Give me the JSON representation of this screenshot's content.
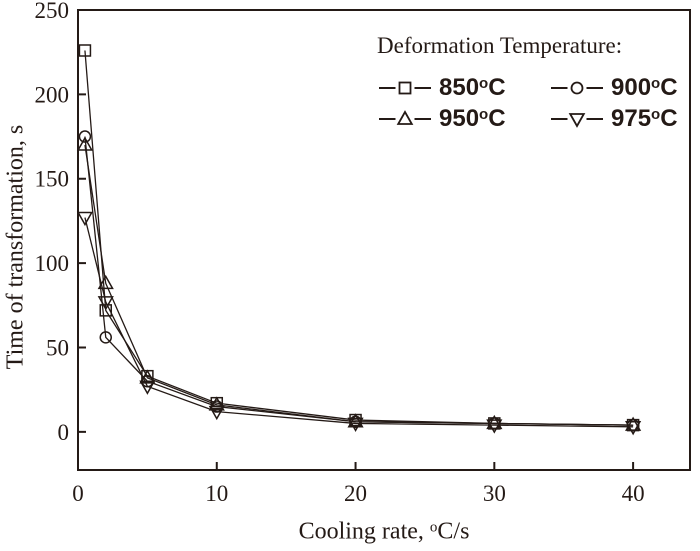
{
  "figure": {
    "background": "#ffffff",
    "ink_color": "#241a16"
  },
  "axes": {
    "x": {
      "label": "Cooling rate, °C/s",
      "ticks": [
        0,
        10,
        20,
        30,
        40
      ]
    },
    "y": {
      "label": "Time of transformation, s",
      "ticks": [
        0,
        50,
        100,
        150,
        200,
        250
      ]
    }
  },
  "legend": {
    "title": "Deformation Temperature:",
    "items": [
      {
        "label": "850°C",
        "marker": "square"
      },
      {
        "label": "900°C",
        "marker": "circle"
      },
      {
        "label": "950°C",
        "marker": "triangle-up"
      },
      {
        "label": "975°C",
        "marker": "triangle-down"
      }
    ]
  },
  "chart_data": {
    "type": "line",
    "title": "",
    "xlabel": "Cooling rate, °C/s",
    "ylabel": "Time of transformation, s",
    "x": [
      0.5,
      2,
      5,
      10,
      20,
      30,
      40
    ],
    "series": [
      {
        "name": "850°C",
        "marker": "square",
        "values": [
          226,
          72,
          33,
          17,
          7,
          5,
          4
        ]
      },
      {
        "name": "900°C",
        "marker": "circle",
        "values": [
          175,
          56,
          30,
          15,
          6,
          5,
          4
        ]
      },
      {
        "name": "950°C",
        "marker": "triangle-up",
        "values": [
          170,
          88,
          32,
          16,
          6,
          5,
          4
        ]
      },
      {
        "name": "975°C",
        "marker": "triangle-down",
        "values": [
          127,
          77,
          27,
          12,
          5,
          4,
          3
        ]
      }
    ],
    "xlim": [
      0,
      44.1
    ],
    "ylim": [
      -22.6,
      250
    ],
    "grid": false,
    "legend_position": "upper-right-inside",
    "marker_fill": "open",
    "line_color": "#241a16"
  }
}
